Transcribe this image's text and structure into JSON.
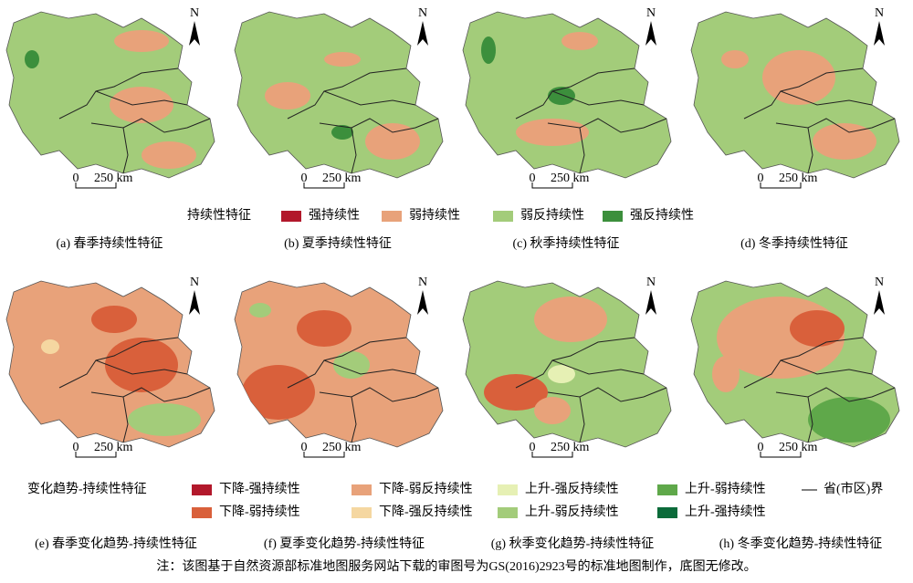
{
  "panels": [
    {
      "caption": "(a) 春季持续性特征",
      "scale_start": "0",
      "scale_label": "250 km",
      "north": "N"
    },
    {
      "caption": "(b) 夏季持续性特征",
      "scale_start": "0",
      "scale_label": "250 km",
      "north": "N"
    },
    {
      "caption": "(c) 秋季持续性特征",
      "scale_start": "0",
      "scale_label": "250 km",
      "north": "N"
    },
    {
      "caption": "(d) 冬季持续性特征",
      "scale_start": "0",
      "scale_label": "250 km",
      "north": "N"
    },
    {
      "caption": "(e) 春季变化趋势-持续性特征",
      "scale_start": "0",
      "scale_label": "250 km",
      "north": "N"
    },
    {
      "caption": "(f) 夏季变化趋势-持续性特征",
      "scale_start": "0",
      "scale_label": "250 km",
      "north": "N"
    },
    {
      "caption": "(g) 秋季变化趋势-持续性特征",
      "scale_start": "0",
      "scale_label": "250 km",
      "north": "N"
    },
    {
      "caption": "(h) 冬季变化趋势-持续性特征",
      "scale_start": "0",
      "scale_label": "250 km",
      "north": "N"
    }
  ],
  "legend1": {
    "title": "持续性特征",
    "items": [
      {
        "label": "强持续性",
        "color": "#b2182b"
      },
      {
        "label": "弱持续性",
        "color": "#e8a27a"
      },
      {
        "label": "弱反持续性",
        "color": "#a3cc7a"
      },
      {
        "label": "强反持续性",
        "color": "#3c8f3c"
      }
    ]
  },
  "legend2": {
    "title": "变化趋势-持续性特征",
    "items": [
      {
        "label": "下降-强持续性",
        "color": "#b2182b"
      },
      {
        "label": "下降-弱持续性",
        "color": "#d9603b"
      },
      {
        "label": "下降-弱反持续性",
        "color": "#e8a27a"
      },
      {
        "label": "下降-强反持续性",
        "color": "#f5d7a1"
      },
      {
        "label": "上升-强反持续性",
        "color": "#e6f0b4"
      },
      {
        "label": "上升-弱反持续性",
        "color": "#a3cc7a"
      },
      {
        "label": "上升-弱持续性",
        "color": "#5fa84a"
      },
      {
        "label": "上升-强持续性",
        "color": "#0b6b3a"
      }
    ],
    "boundary": "省(市区)界"
  },
  "note": "注：该图基于自然资源部标准地图服务网站下载的审图号为GS(2016)2923号的标准地图制作，底图无修改。"
}
